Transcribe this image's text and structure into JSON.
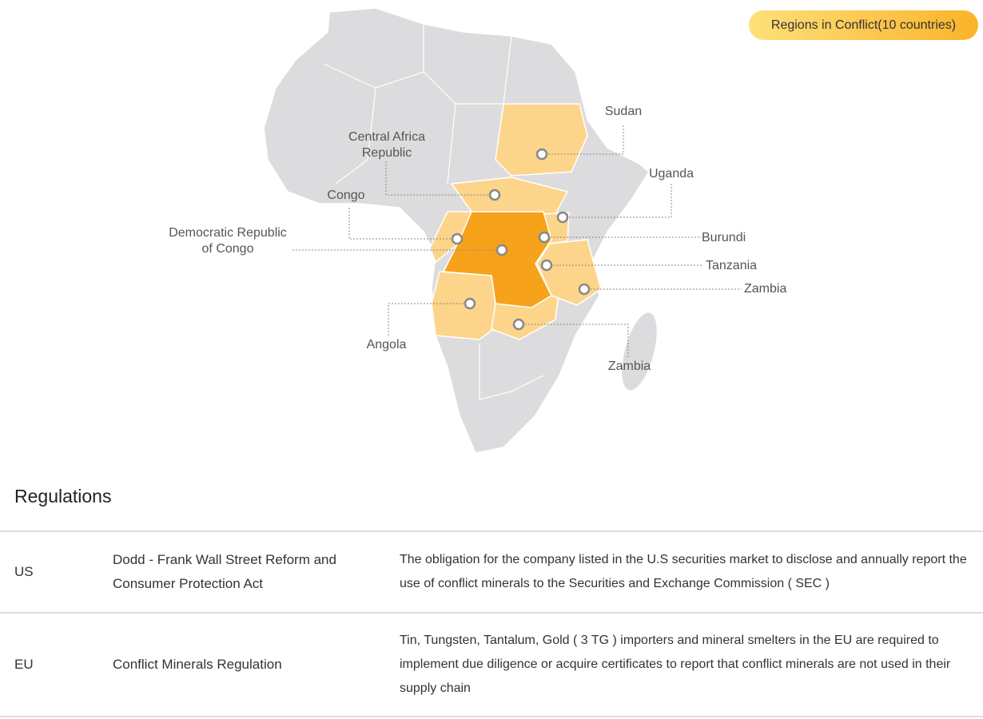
{
  "badge": "Regions in Conflict(10 countries)",
  "map": {
    "labels": [
      "Sudan",
      "Uganda",
      "Central Africa Republic",
      "Congo",
      "Democratic Republic of Congo",
      "Burundi",
      "Tanzania",
      "Zambia",
      "Angola",
      "Zambia"
    ]
  },
  "regulations": {
    "title": "Regulations",
    "rows": [
      [
        "US",
        "Dodd - Frank Wall Street Reform and Consumer Protection Act",
        "The obligation for the company listed in the U.S securities market to disclose and annually report the use of conflict minerals to the Securities and Exchange Commission ( SEC )"
      ],
      [
        "EU",
        "Conflict Minerals Regulation",
        "Tin, Tungsten, Tantalum, Gold ( 3 TG ) importers and mineral smelters in the EU are required to implement due diligence or acquire certificates to report that conflict minerals are not used in their supply chain"
      ]
    ]
  }
}
